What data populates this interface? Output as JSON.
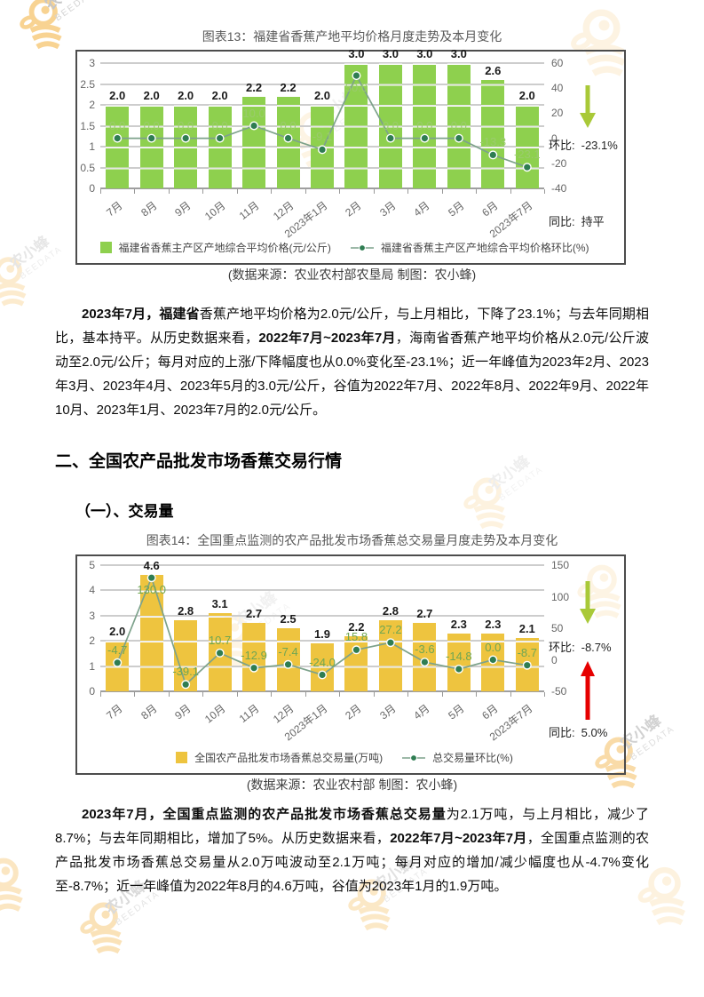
{
  "page": {
    "watermark": {
      "text": "农小蜂",
      "sub": "BEEDATA"
    }
  },
  "headings": {
    "section": "二、全国农产品批发市场香蕉交易行情",
    "subsection": "（一）、交易量"
  },
  "chart_data": [
    {
      "type": "bar+line",
      "title": "图表13：福建省香蕉产地平均价格月度走势及本月变化",
      "source": "(数据来源：农业农村部农垦局  制图：农小蜂)",
      "categories": [
        "7月",
        "8月",
        "9月",
        "10月",
        "11月",
        "12月",
        "2023年1月",
        "2月",
        "3月",
        "4月",
        "5月",
        "6月",
        "2023年7月"
      ],
      "series": [
        {
          "name": "福建省香蕉主产区产地综合平均价格(元/公斤)",
          "type": "bar",
          "values": [
            2.0,
            2.0,
            2.0,
            2.0,
            2.2,
            2.2,
            2.0,
            3.0,
            3.0,
            3.0,
            3.0,
            2.6,
            2.0
          ]
        },
        {
          "name": "福建省香蕉主产区产地综合平均价格环比(%)",
          "type": "line",
          "values": [
            0.0,
            0.0,
            0.0,
            0.0,
            10.0,
            0.0,
            -9.1,
            50.0,
            0.0,
            0.0,
            0.0,
            -13.3,
            -23.1
          ]
        }
      ],
      "left_axis": {
        "min": 0,
        "max": 3,
        "step": 0.5
      },
      "right_axis": {
        "min": -40,
        "max": 60,
        "step": 20
      },
      "grid": true,
      "legend_position": "bottom",
      "annotations": {
        "mom_label": "环比:",
        "mom_value": "-23.1%",
        "mom_direction": "down",
        "yoy_label": "同比:",
        "yoy_value": "持平",
        "yoy_direction": "flat"
      },
      "colors": {
        "bar": "#8ed04e",
        "line": "#7da28b",
        "dot": "#2f7d52",
        "line_label": "#9bcb6e",
        "value_label": "#1a1a1a",
        "down_arrow": "#a9c938",
        "up_arrow": "#e60000"
      }
    },
    {
      "type": "bar+line",
      "title": "图表14：全国重点监测的农产品批发市场香蕉总交易量月度走势及本月变化",
      "source": "(数据来源：农业农村部  制图：农小蜂)",
      "categories": [
        "7月",
        "8月",
        "9月",
        "10月",
        "11月",
        "12月",
        "2023年1月",
        "2月",
        "3月",
        "4月",
        "5月",
        "6月",
        "2023年7月"
      ],
      "series": [
        {
          "name": "全国农产品批发市场香蕉总交易量(万吨)",
          "type": "bar",
          "values": [
            2.0,
            4.6,
            2.8,
            3.1,
            2.7,
            2.5,
            1.9,
            2.2,
            2.8,
            2.7,
            2.3,
            2.3,
            2.1
          ]
        },
        {
          "name": "总交易量环比(%)",
          "type": "line",
          "values": [
            -4.7,
            130.0,
            -39.1,
            10.7,
            -12.9,
            -7.4,
            -24.0,
            15.8,
            27.2,
            -3.6,
            -14.8,
            0.0,
            -8.7
          ]
        }
      ],
      "left_axis": {
        "min": 0,
        "max": 5,
        "step": 1
      },
      "right_axis": {
        "min": -50,
        "max": 150,
        "step": 50
      },
      "grid": true,
      "legend_position": "bottom",
      "annotations": {
        "mom_label": "环比:",
        "mom_value": "-8.7%",
        "mom_direction": "down",
        "yoy_label": "同比:",
        "yoy_value": "5.0%",
        "yoy_direction": "up"
      },
      "colors": {
        "bar": "#eec43f",
        "line": "#7da28b",
        "dot": "#2f7d52",
        "line_label": "#6fa653",
        "value_label": "#1a1a1a",
        "down_arrow": "#a9c938",
        "up_arrow": "#e60000"
      }
    }
  ],
  "paragraphs": {
    "p1": [
      {
        "text": "2023年7月，福建省",
        "bold": true
      },
      {
        "text": "香蕉产地平均价格为2.0元/公斤，与上月相比，下降了23.1%；与去年同期相比，基本持平。从历史数据来看，",
        "bold": false
      },
      {
        "text": "2022年7月~2023年7月",
        "bold": true
      },
      {
        "text": "，海南省香蕉产地平均价格从2.0元/公斤波动至2.0元/公斤；每月对应的上涨/下降幅度也从0.0%变化至-23.1%；近一年峰值为2023年2月、2023年3月、2023年4月、2023年5月的3.0元/公斤，谷值为2022年7月、2022年8月、2022年9月、2022年10月、2023年1月、2023年7月的2.0元/公斤。",
        "bold": false
      }
    ],
    "p2": [
      {
        "text": "2023年7月，全国重点监测的农产品批发市场香蕉总交易量",
        "bold": true
      },
      {
        "text": "为2.1万吨，与上月相比，减少了8.7%；与去年同期相比，增加了5%。从历史数据来看，",
        "bold": false
      },
      {
        "text": "2022年7月~2023年7月",
        "bold": true
      },
      {
        "text": "，全国重点监测的农产品批发市场香蕉总交易量从2.0万吨波动至2.1万吨；每月对应的增加/减少幅度也从-4.7%变化至-8.7%；近一年峰值为2022年8月的4.6万吨，谷值为2023年1月的1.9万吨。",
        "bold": false
      }
    ]
  }
}
